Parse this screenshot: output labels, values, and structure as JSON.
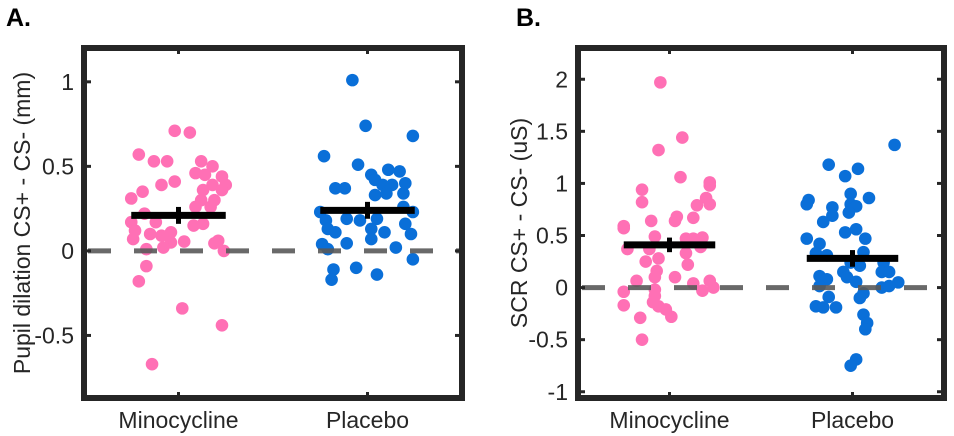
{
  "chart_data": [
    {
      "type": "scatter",
      "panel_label": "A.",
      "ylabel": "Pupil dilation CS+ - CS- (mm)",
      "categories": [
        "Minocycline",
        "Placebo"
      ],
      "xlim": [
        0.5,
        2.5
      ],
      "ylim": [
        -0.87,
        1.2
      ],
      "yticks": [
        -0.5,
        0,
        0.5,
        1
      ],
      "ytick_labels": [
        "-0.5",
        "0",
        "0.5",
        "1"
      ],
      "reference_line": {
        "y": 0,
        "style": "dashed",
        "color": "#595959"
      },
      "grid": false,
      "series": [
        {
          "category": "Minocycline",
          "color": "#ff70b5",
          "mean": 0.21,
          "sem": 0.05,
          "points": [
            [
              0.98,
              0.71
            ],
            [
              1.06,
              0.7
            ],
            [
              0.79,
              0.57
            ],
            [
              0.87,
              0.53
            ],
            [
              0.94,
              0.53
            ],
            [
              1.12,
              0.53
            ],
            [
              1.18,
              0.5
            ],
            [
              1.09,
              0.46
            ],
            [
              1.14,
              0.45
            ],
            [
              1.23,
              0.44
            ],
            [
              0.91,
              0.39
            ],
            [
              0.98,
              0.41
            ],
            [
              1.18,
              0.39
            ],
            [
              1.25,
              0.39
            ],
            [
              0.81,
              0.35
            ],
            [
              0.75,
              0.31
            ],
            [
              1.13,
              0.36
            ],
            [
              1.23,
              0.36
            ],
            [
              1.19,
              0.3
            ],
            [
              1.12,
              0.3
            ],
            [
              1.09,
              0.26
            ],
            [
              1.17,
              0.26
            ],
            [
              0.82,
              0.22
            ],
            [
              0.75,
              0.17
            ],
            [
              0.88,
              0.17
            ],
            [
              1.08,
              0.15
            ],
            [
              1.13,
              0.16
            ],
            [
              0.77,
              0.12
            ],
            [
              0.85,
              0.1
            ],
            [
              0.91,
              0.09
            ],
            [
              0.96,
              0.11
            ],
            [
              0.76,
              0.07
            ],
            [
              0.96,
              0.05
            ],
            [
              1.03,
              0.055
            ],
            [
              0.92,
              0.02
            ],
            [
              0.83,
              0.01
            ],
            [
              1.19,
              0.045
            ],
            [
              1.21,
              0.06
            ],
            [
              1.24,
              0.0
            ],
            [
              0.83,
              -0.09
            ],
            [
              0.79,
              -0.18
            ],
            [
              1.02,
              -0.34
            ],
            [
              1.23,
              -0.44
            ],
            [
              0.86,
              -0.67
            ]
          ]
        },
        {
          "category": "Placebo",
          "color": "#0a6fd8",
          "mean": 0.24,
          "sem": 0.05,
          "points": [
            [
              1.92,
              1.01
            ],
            [
              1.99,
              0.74
            ],
            [
              2.24,
              0.68
            ],
            [
              1.77,
              0.56
            ],
            [
              1.95,
              0.51
            ],
            [
              2.02,
              0.45
            ],
            [
              2.11,
              0.48
            ],
            [
              2.17,
              0.47
            ],
            [
              2.04,
              0.42
            ],
            [
              2.08,
              0.39
            ],
            [
              2.13,
              0.39
            ],
            [
              2.2,
              0.4
            ],
            [
              1.83,
              0.37
            ],
            [
              1.88,
              0.37
            ],
            [
              2.19,
              0.34
            ],
            [
              2.04,
              0.33
            ],
            [
              2.1,
              0.34
            ],
            [
              2.19,
              0.26
            ],
            [
              2.24,
              0.23
            ],
            [
              1.75,
              0.23
            ],
            [
              1.78,
              0.18
            ],
            [
              1.89,
              0.19
            ],
            [
              1.96,
              0.18
            ],
            [
              2.05,
              0.19
            ],
            [
              2.2,
              0.16
            ],
            [
              1.79,
              0.13
            ],
            [
              1.83,
              0.11
            ],
            [
              2.02,
              0.13
            ],
            [
              2.09,
              0.11
            ],
            [
              2.23,
              0.1
            ],
            [
              2.02,
              0.07
            ],
            [
              1.76,
              0.04
            ],
            [
              1.89,
              0.045
            ],
            [
              2.15,
              0.02
            ],
            [
              1.79,
              0.01
            ],
            [
              2.24,
              -0.05
            ],
            [
              1.82,
              -0.11
            ],
            [
              1.94,
              -0.1
            ],
            [
              2.05,
              -0.14
            ],
            [
              1.81,
              -0.17
            ]
          ]
        }
      ]
    },
    {
      "type": "scatter",
      "panel_label": "B.",
      "ylabel": "SCR CS+ - CS- (uS)",
      "categories": [
        "Minocycline",
        "Placebo"
      ],
      "xlim": [
        0.5,
        2.5
      ],
      "ylim": [
        -1.06,
        2.3
      ],
      "yticks": [
        -1,
        -0.5,
        0,
        0.5,
        1,
        1.5,
        2
      ],
      "ytick_labels": [
        "-1",
        "-0.5",
        "0",
        "0.5",
        "1",
        "1.5",
        "2"
      ],
      "reference_line": {
        "y": 0,
        "style": "dashed",
        "color": "#595959"
      },
      "grid": false,
      "series": [
        {
          "category": "Minocycline",
          "color": "#ff70b5",
          "mean": 0.41,
          "sem": 0.07,
          "points": [
            [
              0.95,
              1.97
            ],
            [
              1.07,
              1.44
            ],
            [
              0.94,
              1.32
            ],
            [
              1.06,
              1.06
            ],
            [
              1.22,
              1.01
            ],
            [
              1.22,
              0.98
            ],
            [
              0.85,
              0.94
            ],
            [
              0.85,
              0.82
            ],
            [
              1.2,
              0.86
            ],
            [
              1.22,
              0.8
            ],
            [
              1.15,
              0.79
            ],
            [
              1.04,
              0.68
            ],
            [
              1.03,
              0.64
            ],
            [
              1.13,
              0.67
            ],
            [
              0.9,
              0.64
            ],
            [
              0.75,
              0.59
            ],
            [
              0.75,
              0.57
            ],
            [
              0.92,
              0.49
            ],
            [
              1.09,
              0.47
            ],
            [
              1.13,
              0.47
            ],
            [
              1.18,
              0.48
            ],
            [
              0.77,
              0.37
            ],
            [
              0.89,
              0.37
            ],
            [
              1.17,
              0.39
            ],
            [
              0.94,
              0.28
            ],
            [
              0.87,
              0.25
            ],
            [
              1.09,
              0.33
            ],
            [
              1.1,
              0.22
            ],
            [
              0.93,
              0.16
            ],
            [
              1.03,
              0.1
            ],
            [
              0.92,
              0.1
            ],
            [
              0.82,
              0.065
            ],
            [
              1.13,
              0.04
            ],
            [
              1.22,
              0.065
            ],
            [
              1.24,
              0.0
            ],
            [
              1.18,
              -0.03
            ],
            [
              0.92,
              -0.02
            ],
            [
              0.92,
              -0.08
            ],
            [
              0.75,
              -0.04
            ],
            [
              0.91,
              -0.14
            ],
            [
              0.94,
              -0.18
            ],
            [
              0.98,
              -0.21
            ],
            [
              0.75,
              -0.17
            ],
            [
              1.01,
              -0.28
            ],
            [
              0.84,
              -0.29
            ],
            [
              0.85,
              -0.5
            ]
          ]
        },
        {
          "category": "Placebo",
          "color": "#0a6fd8",
          "mean": 0.28,
          "sem": 0.08,
          "points": [
            [
              2.23,
              1.37
            ],
            [
              1.87,
              1.18
            ],
            [
              2.03,
              1.14
            ],
            [
              1.96,
              1.07
            ],
            [
              1.99,
              0.9
            ],
            [
              2.09,
              0.86
            ],
            [
              1.76,
              0.84
            ],
            [
              1.75,
              0.8
            ],
            [
              1.99,
              0.8
            ],
            [
              2.02,
              0.78
            ],
            [
              1.89,
              0.77
            ],
            [
              1.98,
              0.72
            ],
            [
              1.89,
              0.69
            ],
            [
              1.84,
              0.63
            ],
            [
              2.02,
              0.56
            ],
            [
              1.96,
              0.53
            ],
            [
              1.75,
              0.47
            ],
            [
              1.82,
              0.42
            ],
            [
              2.07,
              0.47
            ],
            [
              1.8,
              0.33
            ],
            [
              1.86,
              0.31
            ],
            [
              2.06,
              0.34
            ],
            [
              1.99,
              0.24
            ],
            [
              2.04,
              0.21
            ],
            [
              2.17,
              0.24
            ],
            [
              1.95,
              0.15
            ],
            [
              1.82,
              0.11
            ],
            [
              1.86,
              0.08
            ],
            [
              1.97,
              0.1
            ],
            [
              2.16,
              0.15
            ],
            [
              2.2,
              0.15
            ],
            [
              2.02,
              0.055
            ],
            [
              2.25,
              0.05
            ],
            [
              2.16,
              0.0
            ],
            [
              2.2,
              0.015
            ],
            [
              1.82,
              0.015
            ],
            [
              2.06,
              -0.055
            ],
            [
              2.04,
              -0.1
            ],
            [
              1.87,
              -0.09
            ],
            [
              1.8,
              -0.18
            ],
            [
              1.84,
              -0.19
            ],
            [
              1.91,
              -0.19
            ],
            [
              2.06,
              -0.26
            ],
            [
              2.08,
              -0.34
            ],
            [
              2.07,
              -0.4
            ],
            [
              2.02,
              -0.69
            ],
            [
              1.99,
              -0.75
            ]
          ]
        }
      ]
    }
  ]
}
